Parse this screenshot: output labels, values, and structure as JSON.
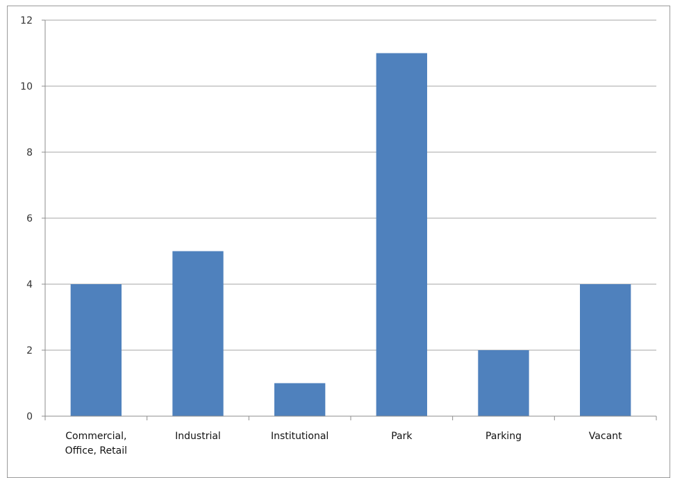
{
  "chart_data": {
    "type": "bar",
    "title": "",
    "xlabel": "",
    "ylabel": "",
    "categories": [
      "Commercial, Office, Retail",
      "Industrial",
      "Institutional",
      "Park",
      "Parking",
      "Vacant"
    ],
    "category_label_lines": [
      [
        "Commercial,",
        "Office, Retail"
      ],
      [
        "Industrial"
      ],
      [
        "Institutional"
      ],
      [
        "Park"
      ],
      [
        "Parking"
      ],
      [
        "Vacant"
      ]
    ],
    "values": [
      4,
      5,
      1,
      11,
      2,
      4
    ],
    "ylim": [
      0,
      12
    ],
    "yticks": [
      0,
      2,
      4,
      6,
      8,
      10,
      12
    ],
    "ytick_labels": [
      "0",
      "2",
      "4",
      "6",
      "8",
      "10",
      "12"
    ],
    "grid": "horizontal",
    "legend": "none",
    "bar_color": "#4f81bd",
    "grid_color": "#a6a6a6"
  }
}
